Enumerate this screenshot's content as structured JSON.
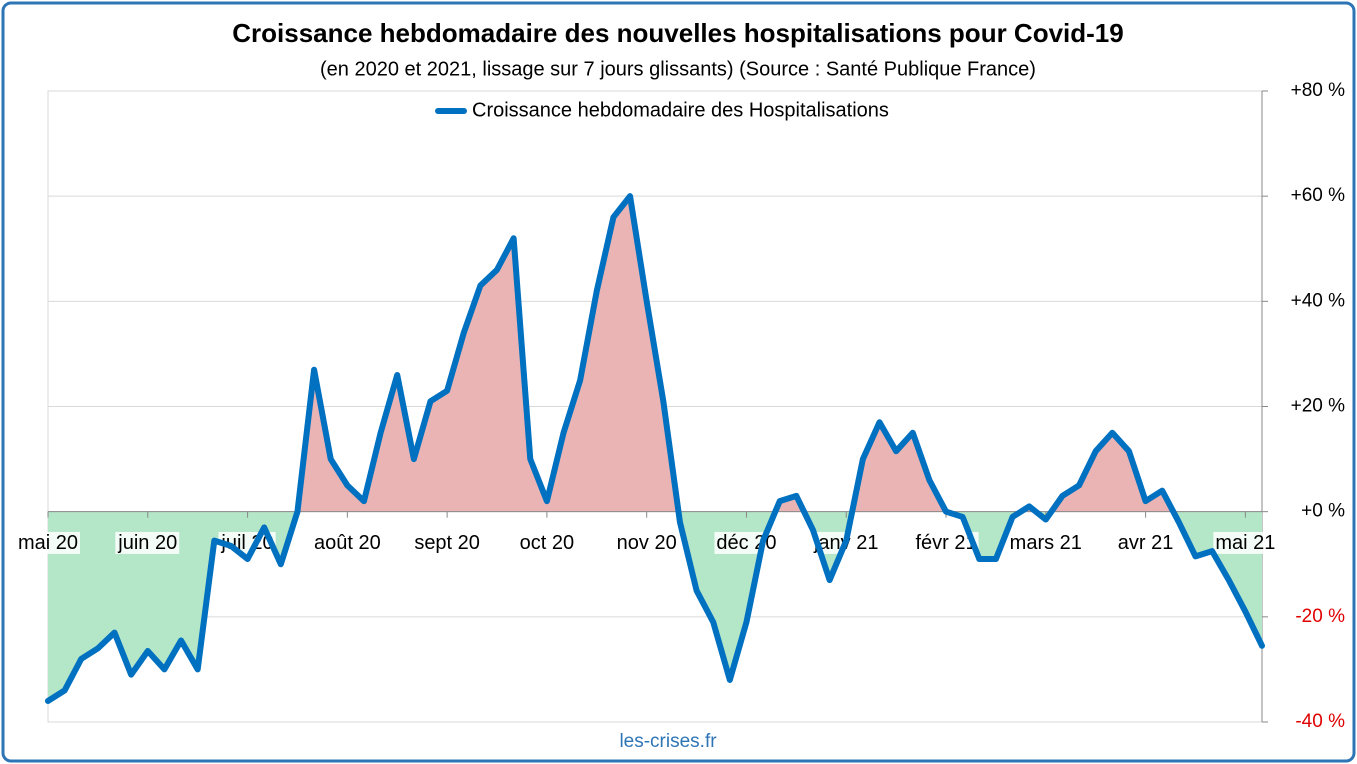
{
  "chart_data": {
    "type": "line",
    "title": "Croissance hebdomadaire des nouvelles hospitalisations pour Covid-19",
    "subtitle": "(en 2020 et 2021, lissage sur 7 jours glissants) (Source : Santé Publique France)",
    "source": "les-crises.fr",
    "categories": [
      "mai 20",
      null,
      null,
      null,
      null,
      null,
      "juin 20",
      null,
      null,
      null,
      null,
      null,
      "juil 20",
      null,
      null,
      null,
      null,
      null,
      "août 20",
      null,
      null,
      null,
      null,
      null,
      "sept 20",
      null,
      null,
      null,
      null,
      null,
      "oct 20",
      null,
      null,
      null,
      null,
      null,
      "nov 20",
      null,
      null,
      null,
      null,
      null,
      "déc 20",
      null,
      null,
      null,
      null,
      null,
      "janv 21",
      null,
      null,
      null,
      null,
      null,
      "févr 21",
      null,
      null,
      null,
      null,
      null,
      "mars 21",
      null,
      null,
      null,
      null,
      null,
      "avr 21",
      null,
      null,
      null,
      null,
      null,
      "mai 21",
      null
    ],
    "series": [
      {
        "name": "Croissance hebdomadaire des Hospitalisations",
        "color": "#0070c0",
        "values": [
          -36,
          -34,
          -28,
          -26,
          -23,
          -31,
          -26.5,
          -30,
          -24.5,
          -30,
          -5.5,
          -6.5,
          -9,
          -3,
          -10,
          0,
          27,
          10,
          5,
          2,
          15,
          26,
          10,
          21,
          23,
          34,
          43,
          46,
          52,
          10,
          2,
          15,
          25,
          42,
          56,
          60,
          40,
          21,
          -2,
          -15,
          -21,
          -32,
          -21,
          -5.5,
          2,
          3,
          -3.5,
          -13,
          -5.5,
          10,
          17,
          11.5,
          15,
          6,
          0,
          -1,
          -9,
          -9,
          -1,
          1,
          -1.5,
          3,
          5,
          11.5,
          15,
          11.5,
          2,
          4,
          -2,
          -8.5,
          -7.5,
          -13,
          -19,
          -25.5
        ]
      }
    ],
    "positive_fill": "#ebb4b4",
    "negative_fill": "#b4e6c8",
    "negative_tick_color": "#e00000",
    "ylim": [
      -40,
      80
    ],
    "yticks": [
      {
        "value": -40,
        "label": "-40 %"
      },
      {
        "value": -20,
        "label": "-20 %"
      },
      {
        "value": 0,
        "label": "+0 %"
      },
      {
        "value": 20,
        "label": "+20 %"
      },
      {
        "value": 40,
        "label": "+40 %"
      },
      {
        "value": 60,
        "label": "+60 %"
      },
      {
        "value": 80,
        "label": "+80 %"
      }
    ],
    "grid": true,
    "legend": "top"
  }
}
